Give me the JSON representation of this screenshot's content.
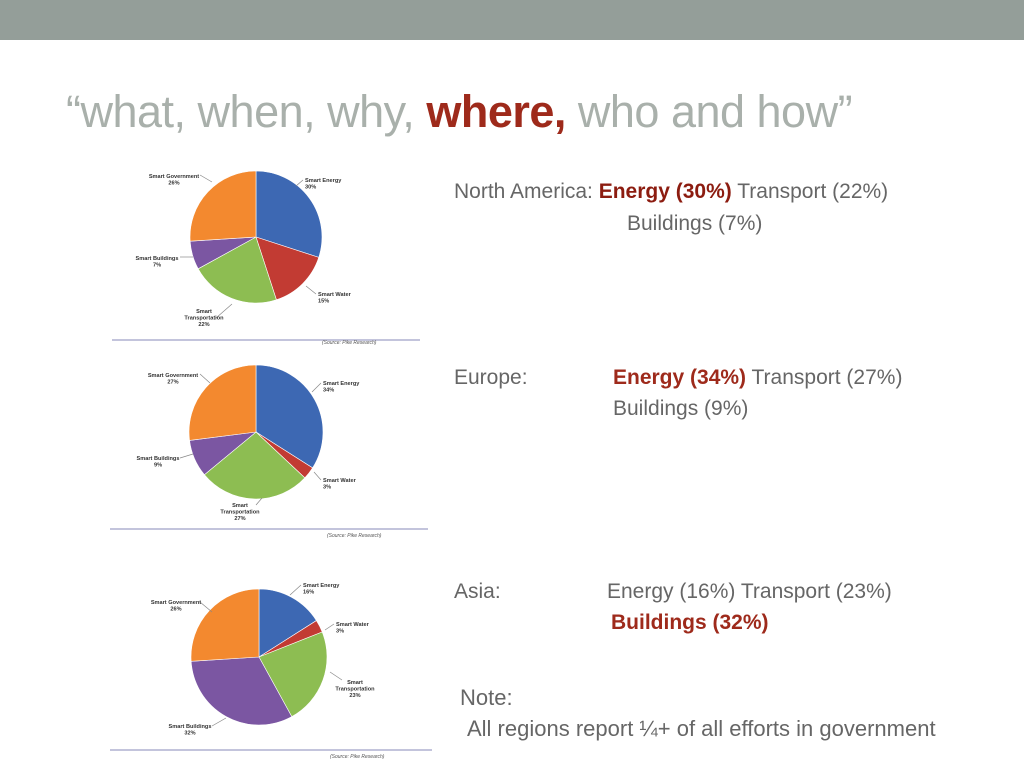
{
  "title": {
    "part1": "“what, when, why, ",
    "highlight": "where,",
    "part2": " who and how”"
  },
  "colors": {
    "energy": "#3d68b3",
    "water": "#c23b33",
    "transportation": "#8dbd52",
    "buildings": "#7b56a2",
    "government": "#f3892f",
    "highlight": "#9e2a1b"
  },
  "source_label": "(Source: Pike Research)",
  "chart_data": [
    {
      "type": "pie",
      "region": "North America",
      "categories": [
        "Smart Energy",
        "Smart Water",
        "Smart Transportation",
        "Smart Buildings",
        "Smart Government"
      ],
      "values": [
        30,
        15,
        22,
        7,
        26
      ],
      "labels": {
        "energy": [
          "Smart Energy",
          "30%"
        ],
        "water": [
          "Smart Water",
          "15%"
        ],
        "transportation": [
          "Smart",
          "Transportation",
          "22%"
        ],
        "buildings": [
          "Smart Buildings",
          "7%"
        ],
        "government": [
          "Smart Government",
          "26%"
        ]
      }
    },
    {
      "type": "pie",
      "region": "Europe",
      "categories": [
        "Smart Energy",
        "Smart Water",
        "Smart Transportation",
        "Smart Buildings",
        "Smart Government"
      ],
      "values": [
        34,
        3,
        27,
        9,
        27
      ],
      "labels": {
        "energy": [
          "Smart Energy",
          "34%"
        ],
        "water": [
          "Smart Water",
          "3%"
        ],
        "transportation": [
          "Smart",
          "Transportation",
          "27%"
        ],
        "buildings": [
          "Smart Buildings",
          "9%"
        ],
        "government": [
          "Smart Government",
          "27%"
        ]
      }
    },
    {
      "type": "pie",
      "region": "Asia",
      "categories": [
        "Smart Energy",
        "Smart Water",
        "Smart Transportation",
        "Smart Buildings",
        "Smart Government"
      ],
      "values": [
        16,
        3,
        23,
        32,
        26
      ],
      "labels": {
        "energy": [
          "Smart Energy",
          "16%"
        ],
        "water": [
          "Smart Water",
          "3%"
        ],
        "transportation": [
          "Smart",
          "Transportation",
          "23%"
        ],
        "buildings": [
          "Smart Buildings",
          "32%"
        ],
        "government": [
          "Smart Government",
          "26%"
        ]
      }
    }
  ],
  "regions": {
    "north_america": {
      "name": "North America: ",
      "highlight": "Energy (30%)",
      "rest": " Transport (22%)",
      "line2": "Buildings (7%)"
    },
    "europe": {
      "name": "Europe:",
      "highlight": "Energy (34%)",
      "rest": "  Transport (27%)",
      "line2": "Buildings (9%)"
    },
    "asia": {
      "name": "Asia:",
      "line1": "Energy (16%) Transport (23%)",
      "highlight": "Buildings (32%)"
    }
  },
  "note": {
    "label": "Note:",
    "text": "All regions report ¼+ of all efforts in government"
  }
}
